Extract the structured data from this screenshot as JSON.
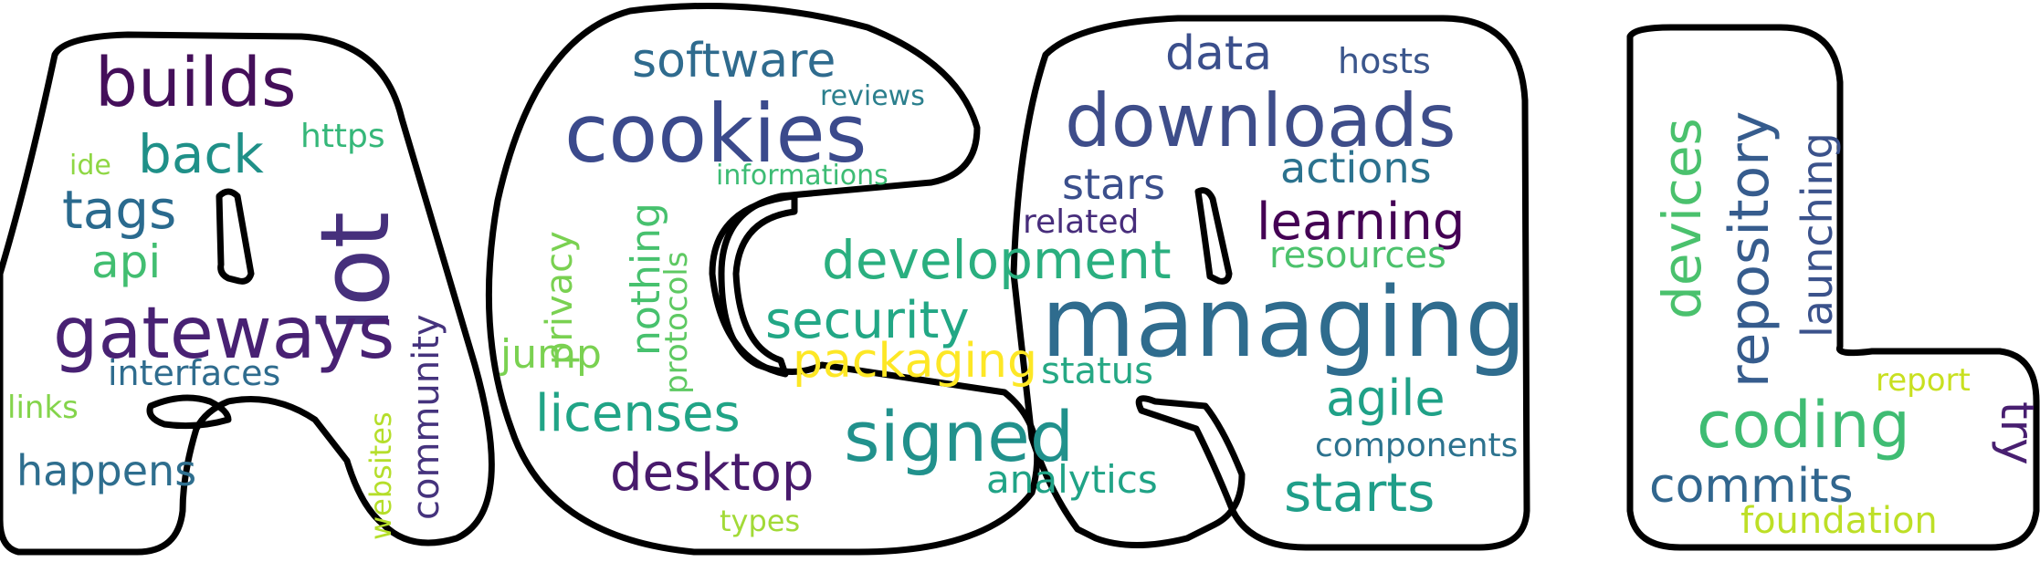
{
  "colors": {
    "background": "#ffffff",
    "outline": "#000000"
  },
  "words": [
    {
      "text": "builds",
      "color": "#440f5a"
    },
    {
      "text": "cookies",
      "color": "#3b4a8c"
    },
    {
      "text": "software",
      "color": "#2f6b8e"
    },
    {
      "text": "reviews",
      "color": "#2b7f8d"
    },
    {
      "text": "data",
      "color": "#3b4f8c"
    },
    {
      "text": "hosts",
      "color": "#3b568c"
    },
    {
      "text": "downloads",
      "color": "#3e4d8a"
    },
    {
      "text": "back",
      "color": "#1f9088"
    },
    {
      "text": "https",
      "color": "#35b779"
    },
    {
      "text": "ide",
      "color": "#8fd744"
    },
    {
      "text": "iot",
      "color": "#46307c"
    },
    {
      "text": "tags",
      "color": "#2a6a8e"
    },
    {
      "text": "informations",
      "color": "#3dbc74"
    },
    {
      "text": "stars",
      "color": "#3b4f8c"
    },
    {
      "text": "actions",
      "color": "#2b728e"
    },
    {
      "text": "related",
      "color": "#472d7b"
    },
    {
      "text": "learning",
      "color": "#440154"
    },
    {
      "text": "resources",
      "color": "#4cc26c"
    },
    {
      "text": "api",
      "color": "#42be71"
    },
    {
      "text": "development",
      "color": "#2aaf7f"
    },
    {
      "text": "privacy",
      "color": "#7ad151"
    },
    {
      "text": "nothing",
      "color": "#47c16e"
    },
    {
      "text": "protocols",
      "color": "#5ec962"
    },
    {
      "text": "gateways",
      "color": "#482173"
    },
    {
      "text": "security",
      "color": "#22a785"
    },
    {
      "text": "managing",
      "color": "#2f6c8e"
    },
    {
      "text": "community",
      "color": "#45337d"
    },
    {
      "text": "jump",
      "color": "#7ad151"
    },
    {
      "text": "interfaces",
      "color": "#2f6c8e"
    },
    {
      "text": "packaging",
      "color": "#fde725"
    },
    {
      "text": "status",
      "color": "#26a884"
    },
    {
      "text": "links",
      "color": "#84d44b"
    },
    {
      "text": "licenses",
      "color": "#20a486"
    },
    {
      "text": "agile",
      "color": "#1fa187"
    },
    {
      "text": "signed",
      "color": "#21918c"
    },
    {
      "text": "components",
      "color": "#2c728e"
    },
    {
      "text": "happens",
      "color": "#2e6e8e"
    },
    {
      "text": "desktop",
      "color": "#481a6c"
    },
    {
      "text": "analytics",
      "color": "#20a386"
    },
    {
      "text": "starts",
      "color": "#1f9e89"
    },
    {
      "text": "websites",
      "color": "#b5de2b"
    },
    {
      "text": "types",
      "color": "#a2da37"
    },
    {
      "text": "devices",
      "color": "#4ac16d"
    },
    {
      "text": "repository",
      "color": "#365c8d"
    },
    {
      "text": "launching",
      "color": "#3b528b"
    },
    {
      "text": "report",
      "color": "#c8e020"
    },
    {
      "text": "coding",
      "color": "#3fbc73"
    },
    {
      "text": "try",
      "color": "#481f70"
    },
    {
      "text": "commits",
      "color": "#31668e"
    },
    {
      "text": "foundation",
      "color": "#bddf26"
    }
  ]
}
